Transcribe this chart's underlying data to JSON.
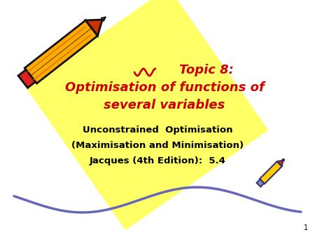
{
  "bg_color": "#ffffff",
  "diamond_color": "#ffff66",
  "title_line1": "Topic 8:",
  "title_line2": "Optimisation of functions of",
  "title_line3": "several variables",
  "subtitle_line1": "Unconstrained  Optimisation",
  "subtitle_line2": "(Maximisation and Minimisation)",
  "subtitle_line3": "Jacques (4th Edition):  5.4",
  "title_color": "#cc0000",
  "subtitle_color": "#000000",
  "slide_number": "1",
  "title_fontsize": 13,
  "subtitle_fontsize": 9.5,
  "slide_number_fontsize": 7
}
